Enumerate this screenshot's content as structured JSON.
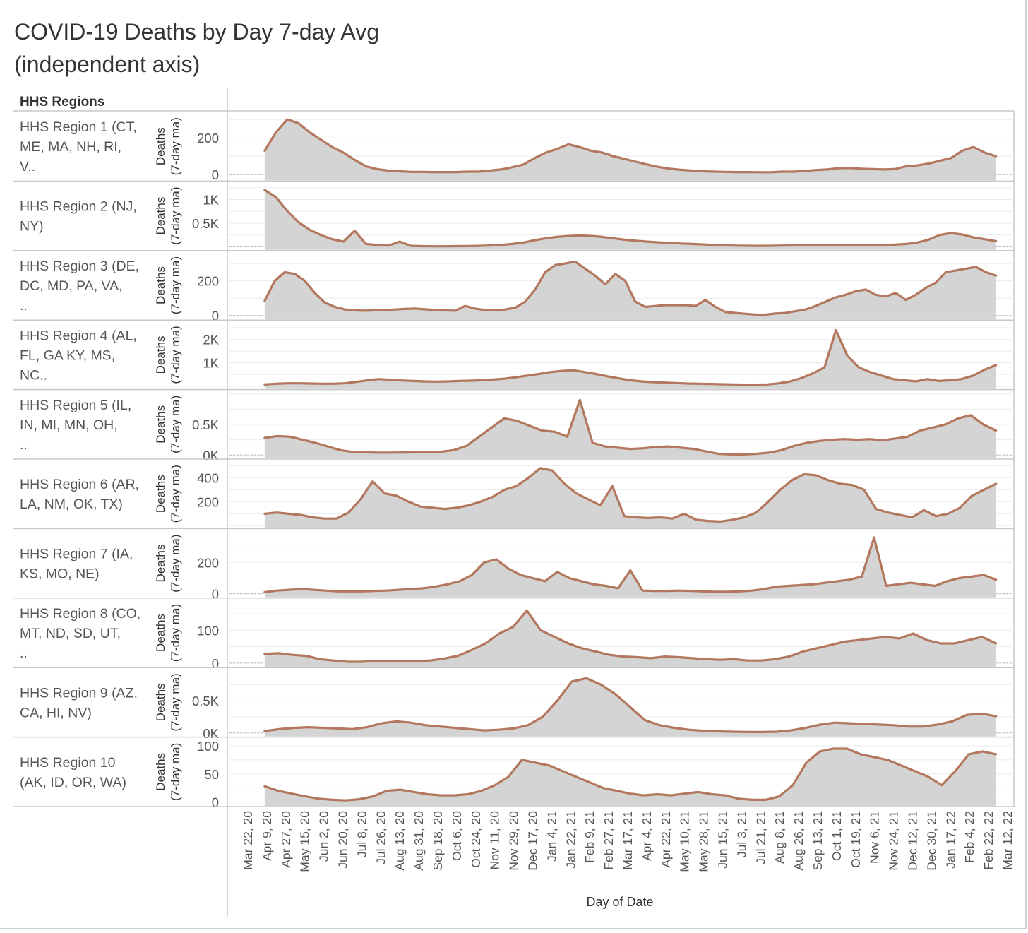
{
  "title": {
    "line1": "COVID-19 Deaths by Day  7-day Avg",
    "line2": "(independent axis)"
  },
  "colors": {
    "line": "#b2775c",
    "area": "#d4d4d4",
    "grid": "#ebebeb",
    "separator": "#c8c8c8",
    "text": "#555555"
  },
  "chart_data": {
    "type": "area",
    "row_header": "HHS Regions",
    "xlabel": "Day of Date",
    "ylabel": "Deaths (7-day ma)",
    "ylabel_line1": "Deaths",
    "ylabel_line2": "(7-day ma)",
    "x_ticks": [
      "Mar 22, 20",
      "Apr 9, 20",
      "Apr 27, 20",
      "May 15, 20",
      "Jun 2, 20",
      "Jun 20, 20",
      "Jul 8, 20",
      "Jul 26, 20",
      "Aug 13, 20",
      "Aug 31, 20",
      "Sep 18, 20",
      "Oct 6, 20",
      "Oct 24, 20",
      "Nov 11, 20",
      "Nov 29, 20",
      "Dec 17, 20",
      "Jan 4, 21",
      "Jan 22, 21",
      "Feb 9, 21",
      "Feb 27, 21",
      "Mar 17, 21",
      "Apr 4, 21",
      "Apr 22, 21",
      "May 10, 21",
      "May 28, 21",
      "Jun 15, 21",
      "Jul 3, 21",
      "Jul 21, 21",
      "Aug 8, 21",
      "Aug 26, 21",
      "Sep 13, 21",
      "Oct 1, 21",
      "Oct 19, 21",
      "Nov 6, 21",
      "Nov 24, 21",
      "Dec 12, 21",
      "Dec 30, 21",
      "Jan 17, 22",
      "Feb 4, 22",
      "Feb 22, 22",
      "Mar 12, 22"
    ],
    "x_domain_days": [
      -8,
      712
    ],
    "data_range_days": [
      8,
      701
    ],
    "x_unit": "days since 2020-03-30, sampled every 7 days",
    "series": [
      {
        "name": "HHS Region 1 (CT, ME, MA, NH, RI, V..",
        "ylim": [
          -20,
          320
        ],
        "ticks": [
          {
            "v": 0,
            "l": "0"
          },
          {
            "v": 200,
            "l": "200"
          }
        ],
        "values": [
          130,
          230,
          300,
          280,
          230,
          190,
          150,
          120,
          80,
          45,
          30,
          22,
          18,
          15,
          15,
          14,
          14,
          14,
          16,
          16,
          22,
          28,
          40,
          55,
          90,
          120,
          140,
          165,
          150,
          130,
          120,
          100,
          85,
          70,
          55,
          42,
          32,
          26,
          22,
          18,
          16,
          15,
          14,
          14,
          13,
          13,
          16,
          16,
          20,
          25,
          28,
          35,
          36,
          32,
          30,
          28,
          30,
          45,
          50,
          60,
          75,
          90,
          130,
          150,
          120,
          100
        ]
      },
      {
        "name": "HHS Region 2 (NJ, NY)",
        "ylim": [
          -20,
          1300
        ],
        "ticks": [
          {
            "v": 500,
            "l": "0.5K"
          },
          {
            "v": 1000,
            "l": "1K"
          }
        ],
        "values": [
          1200,
          1050,
          760,
          520,
          360,
          250,
          160,
          110,
          340,
          60,
          40,
          25,
          110,
          20,
          15,
          12,
          12,
          14,
          16,
          20,
          28,
          40,
          60,
          90,
          140,
          180,
          210,
          230,
          240,
          230,
          210,
          180,
          150,
          130,
          110,
          95,
          85,
          70,
          60,
          50,
          40,
          30,
          25,
          22,
          20,
          22,
          26,
          30,
          36,
          40,
          42,
          40,
          38,
          36,
          36,
          38,
          45,
          60,
          90,
          150,
          250,
          290,
          260,
          200,
          160,
          120
        ]
      },
      {
        "name": "HHS Region 3 (DE, DC, MD, PA, VA, ..",
        "ylim": [
          -10,
          350
        ],
        "ticks": [
          {
            "v": 0,
            "l": "0"
          },
          {
            "v": 200,
            "l": "200"
          }
        ],
        "values": [
          85,
          200,
          250,
          240,
          200,
          130,
          75,
          50,
          35,
          30,
          28,
          30,
          32,
          35,
          38,
          40,
          36,
          32,
          30,
          28,
          55,
          40,
          32,
          30,
          35,
          45,
          80,
          150,
          250,
          290,
          300,
          310,
          270,
          230,
          180,
          240,
          200,
          80,
          50,
          55,
          60,
          60,
          60,
          55,
          90,
          50,
          20,
          15,
          10,
          5,
          5,
          12,
          15,
          25,
          35,
          55,
          80,
          105,
          120,
          140,
          150,
          120,
          110,
          130,
          90,
          120,
          160,
          190,
          250,
          260,
          270,
          280,
          250,
          230
        ]
      },
      {
        "name": "HHS Region 4 (AL, FL, GA KY, MS, NC..",
        "ylim": [
          -30,
          2650
        ],
        "ticks": [
          {
            "v": 1000,
            "l": "1K"
          },
          {
            "v": 2000,
            "l": "2K"
          }
        ],
        "values": [
          70,
          100,
          120,
          120,
          110,
          100,
          100,
          120,
          180,
          250,
          300,
          270,
          240,
          220,
          200,
          190,
          200,
          220,
          230,
          250,
          280,
          320,
          380,
          450,
          520,
          600,
          650,
          680,
          600,
          520,
          420,
          330,
          250,
          200,
          170,
          150,
          130,
          110,
          100,
          90,
          80,
          70,
          60,
          60,
          70,
          120,
          200,
          350,
          550,
          800,
          2400,
          1300,
          800,
          600,
          450,
          300,
          250,
          200,
          300,
          220,
          250,
          300,
          450,
          700,
          900
        ]
      },
      {
        "name": "HHS Region 5 (IL, IN, MI, MN, OH, ..",
        "ylim": [
          -20,
          1000
        ],
        "ticks": [
          {
            "v": 0,
            "l": "0K"
          },
          {
            "v": 500,
            "l": "0.5K"
          }
        ],
        "values": [
          280,
          310,
          300,
          250,
          200,
          140,
          80,
          50,
          45,
          40,
          40,
          42,
          45,
          48,
          55,
          80,
          150,
          300,
          450,
          600,
          560,
          480,
          400,
          380,
          300,
          900,
          200,
          140,
          120,
          100,
          110,
          130,
          140,
          120,
          100,
          60,
          20,
          10,
          10,
          20,
          40,
          80,
          150,
          200,
          230,
          250,
          260,
          250,
          260,
          240,
          270,
          300,
          400,
          450,
          500,
          600,
          650,
          500,
          400
        ]
      },
      {
        "name": "HHS Region 6 (AR, LA, NM, OK, TX)",
        "ylim": [
          0,
          520
        ],
        "ticks": [
          {
            "v": 200,
            "l": "200"
          },
          {
            "v": 400,
            "l": "400"
          }
        ],
        "values": [
          100,
          110,
          100,
          90,
          70,
          60,
          60,
          110,
          220,
          370,
          270,
          250,
          200,
          160,
          150,
          140,
          150,
          170,
          200,
          240,
          300,
          330,
          400,
          480,
          460,
          350,
          270,
          220,
          170,
          330,
          80,
          70,
          65,
          70,
          60,
          100,
          50,
          40,
          35,
          50,
          70,
          110,
          200,
          300,
          380,
          430,
          420,
          380,
          350,
          340,
          300,
          140,
          110,
          90,
          70,
          130,
          80,
          100,
          150,
          250,
          300,
          350
        ]
      },
      {
        "name": "HHS Region 7 (IA, KS, MO, NE)",
        "ylim": [
          -10,
          390
        ],
        "ticks": [
          {
            "v": 0,
            "l": "0"
          },
          {
            "v": 200,
            "l": "200"
          }
        ],
        "values": [
          10,
          20,
          25,
          30,
          25,
          20,
          15,
          15,
          15,
          18,
          20,
          25,
          30,
          35,
          45,
          60,
          80,
          120,
          200,
          220,
          160,
          120,
          100,
          80,
          140,
          100,
          80,
          60,
          50,
          35,
          150,
          20,
          18,
          18,
          20,
          18,
          15,
          12,
          12,
          15,
          20,
          30,
          45,
          50,
          55,
          60,
          70,
          80,
          90,
          110,
          360,
          50,
          60,
          70,
          60,
          50,
          80,
          100,
          110,
          120,
          90
        ]
      },
      {
        "name": "HHS Region 8 (CO, MT, ND, SD, UT, ..",
        "ylim": [
          -5,
          185
        ],
        "ticks": [
          {
            "v": 0,
            "l": "0"
          },
          {
            "v": 100,
            "l": "100"
          }
        ],
        "values": [
          28,
          30,
          25,
          22,
          12,
          8,
          4,
          4,
          6,
          7,
          6,
          6,
          8,
          14,
          22,
          40,
          60,
          90,
          110,
          160,
          100,
          80,
          60,
          45,
          35,
          25,
          20,
          18,
          15,
          20,
          18,
          15,
          12,
          10,
          12,
          8,
          8,
          12,
          20,
          35,
          45,
          55,
          65,
          70,
          75,
          80,
          75,
          90,
          70,
          60,
          60,
          70,
          80,
          60
        ]
      },
      {
        "name": "HHS Region 9 (AZ, CA, HI, NV)",
        "ylim": [
          -20,
          950
        ],
        "ticks": [
          {
            "v": 0,
            "l": "0K"
          },
          {
            "v": 500,
            "l": "0.5K"
          }
        ],
        "values": [
          30,
          60,
          80,
          90,
          80,
          70,
          60,
          90,
          150,
          180,
          160,
          120,
          100,
          80,
          60,
          40,
          50,
          70,
          120,
          250,
          500,
          800,
          850,
          750,
          600,
          400,
          200,
          120,
          80,
          50,
          35,
          25,
          20,
          15,
          15,
          20,
          40,
          80,
          130,
          160,
          150,
          140,
          130,
          120,
          100,
          100,
          130,
          180,
          280,
          300,
          260
        ]
      },
      {
        "name": "HHS Region 10 (AK, ID, OR, WA)",
        "ylim": [
          -3,
          108
        ],
        "ticks": [
          {
            "v": 0,
            "l": "0"
          },
          {
            "v": 50,
            "l": "50"
          },
          {
            "v": 100,
            "l": "100"
          }
        ],
        "values": [
          28,
          20,
          15,
          10,
          6,
          4,
          3,
          5,
          10,
          20,
          22,
          18,
          14,
          12,
          12,
          14,
          20,
          30,
          45,
          75,
          70,
          65,
          55,
          45,
          35,
          25,
          20,
          15,
          12,
          14,
          12,
          15,
          18,
          14,
          12,
          6,
          4,
          4,
          10,
          30,
          70,
          90,
          95,
          95,
          85,
          80,
          75,
          65,
          55,
          45,
          30,
          55,
          85,
          90,
          85
        ]
      }
    ]
  }
}
